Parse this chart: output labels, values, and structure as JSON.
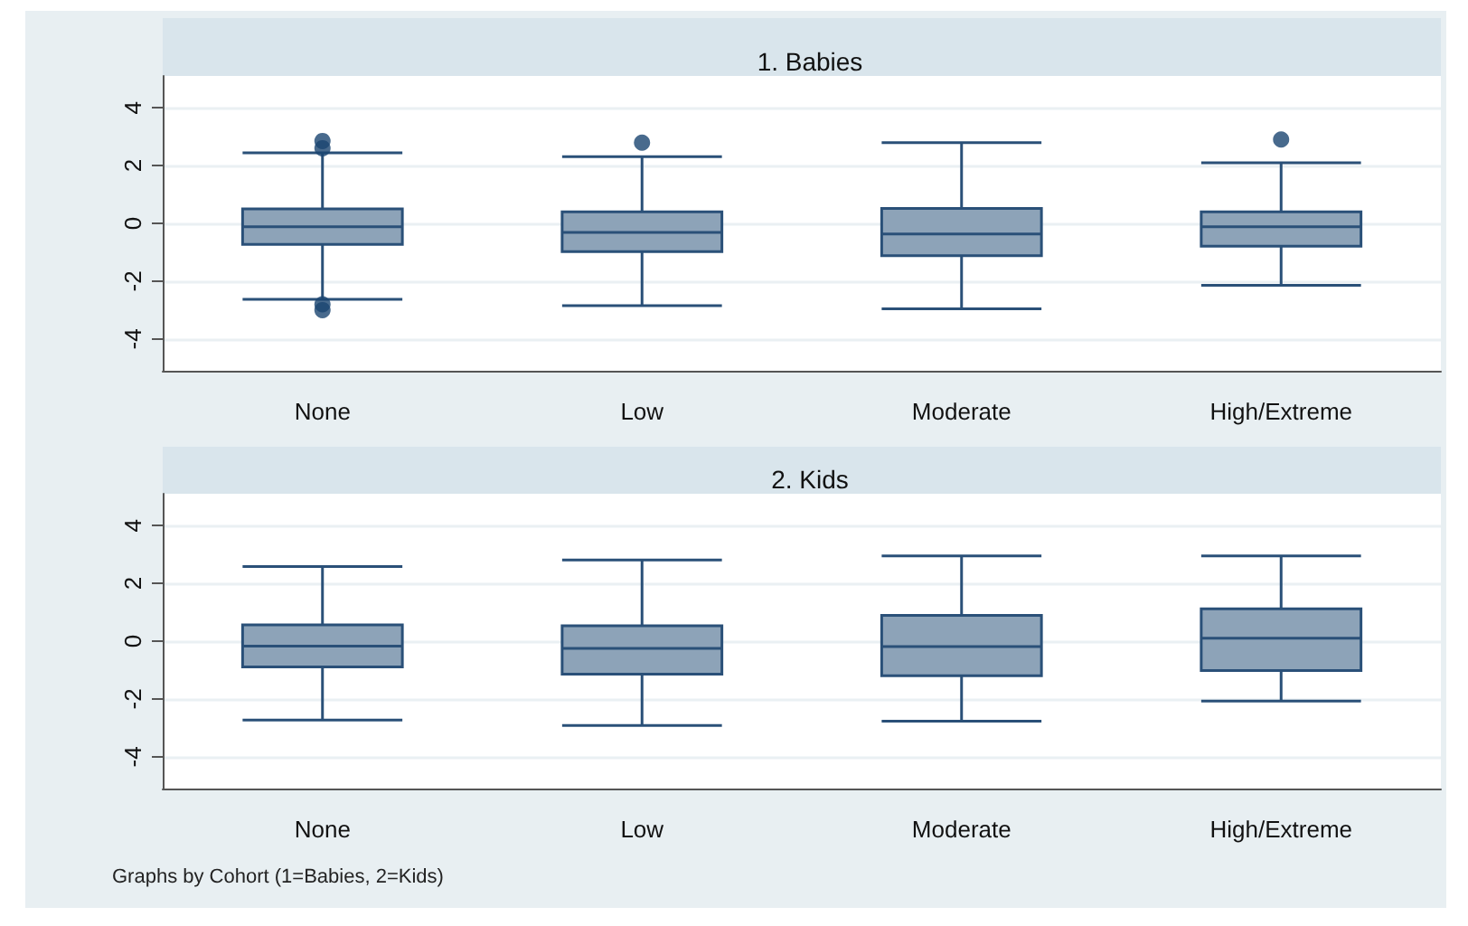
{
  "chart_data": [
    {
      "type": "box",
      "title": "1. Babies",
      "categories": [
        "None",
        "Low",
        "Moderate",
        "High/Extreme"
      ],
      "ylim": [
        -5.1,
        5.1
      ],
      "yticks": [
        -4,
        -2,
        0,
        2,
        4
      ],
      "grid": "y",
      "color": "#8da3b8",
      "boxes": [
        {
          "low": -2.63,
          "q1": -0.73,
          "median": -0.12,
          "q3": 0.5,
          "high": 2.44,
          "outliers": [
            2.85,
            2.6,
            -2.8,
            -3.0
          ]
        },
        {
          "low": -2.85,
          "q1": -0.98,
          "median": -0.31,
          "q3": 0.4,
          "high": 2.31,
          "outliers": [
            2.79
          ]
        },
        {
          "low": -2.96,
          "q1": -1.12,
          "median": -0.37,
          "q3": 0.52,
          "high": 2.79
        },
        {
          "low": -2.14,
          "q1": -0.79,
          "median": -0.12,
          "q3": 0.4,
          "high": 2.1,
          "outliers": [
            2.9
          ]
        }
      ]
    },
    {
      "type": "box",
      "title": "2. Kids",
      "categories": [
        "None",
        "Low",
        "Moderate",
        "High/Extreme"
      ],
      "ylim": [
        -5.1,
        5.1
      ],
      "yticks": [
        -4,
        -2,
        0,
        2,
        4
      ],
      "grid": "y",
      "color": "#8da3b8",
      "annotations": [
        "Graphs by Cohort (1=Babies, 2=Kids)"
      ],
      "boxes": [
        {
          "low": -2.73,
          "q1": -0.89,
          "median": -0.17,
          "q3": 0.56,
          "high": 2.58
        },
        {
          "low": -2.92,
          "q1": -1.14,
          "median": -0.25,
          "q3": 0.53,
          "high": 2.81
        },
        {
          "low": -2.77,
          "q1": -1.2,
          "median": -0.19,
          "q3": 0.89,
          "high": 2.95
        },
        {
          "low": -2.07,
          "q1": -1.02,
          "median": 0.1,
          "q3": 1.12,
          "high": 2.95
        }
      ]
    }
  ]
}
